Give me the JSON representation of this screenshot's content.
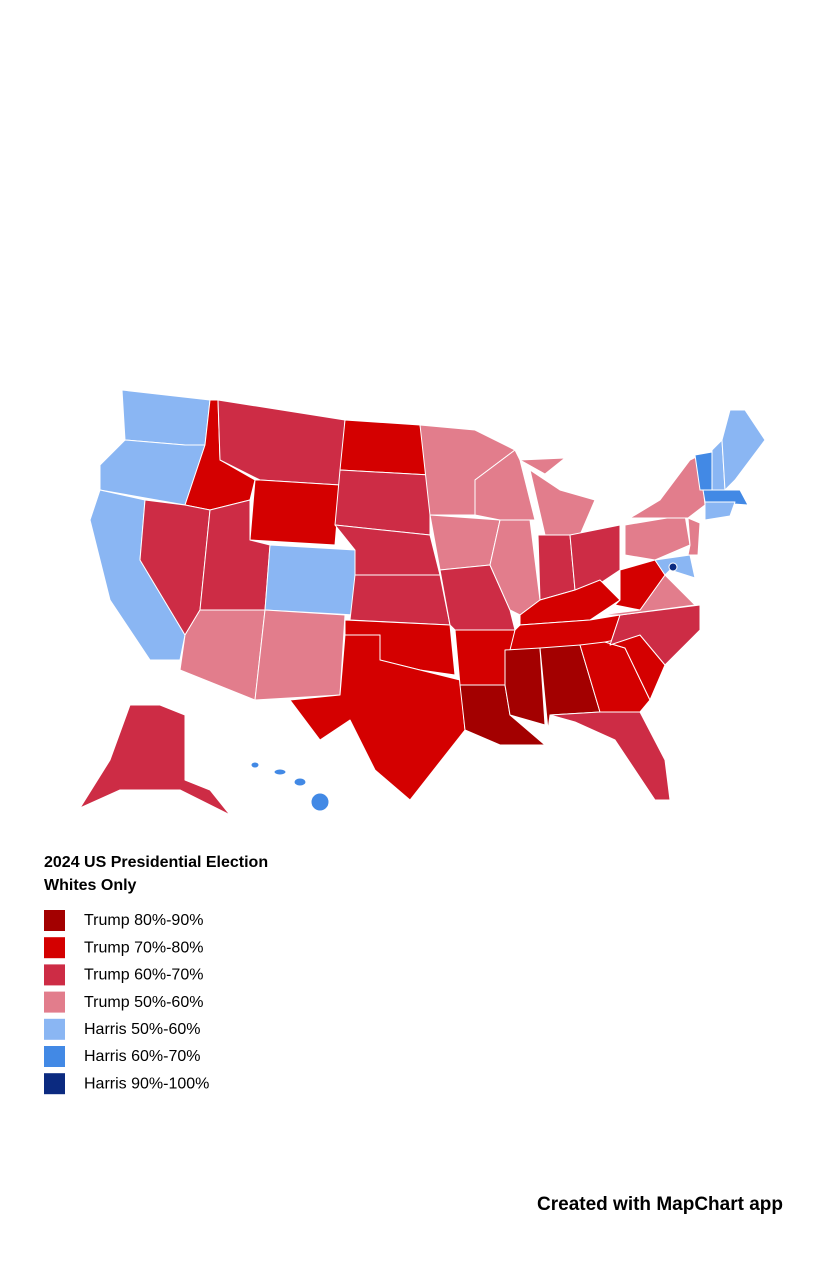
{
  "legend": {
    "title": "2024 US Presidential Election",
    "subtitle": "Whites Only",
    "entries": [
      {
        "label": "Trump 80%-90%",
        "color": "#a30000"
      },
      {
        "label": "Trump 70%-80%",
        "color": "#d40000"
      },
      {
        "label": "Trump 60%-70%",
        "color": "#cd2c45"
      },
      {
        "label": "Trump 50%-60%",
        "color": "#e27d8c"
      },
      {
        "label": "Harris 50%-60%",
        "color": "#8ab6f3"
      },
      {
        "label": "Harris 60%-70%",
        "color": "#4289e5"
      },
      {
        "label": "Harris 90%-100%",
        "color": "#0b2a80"
      }
    ]
  },
  "footer": "Created with MapChart app"
}
